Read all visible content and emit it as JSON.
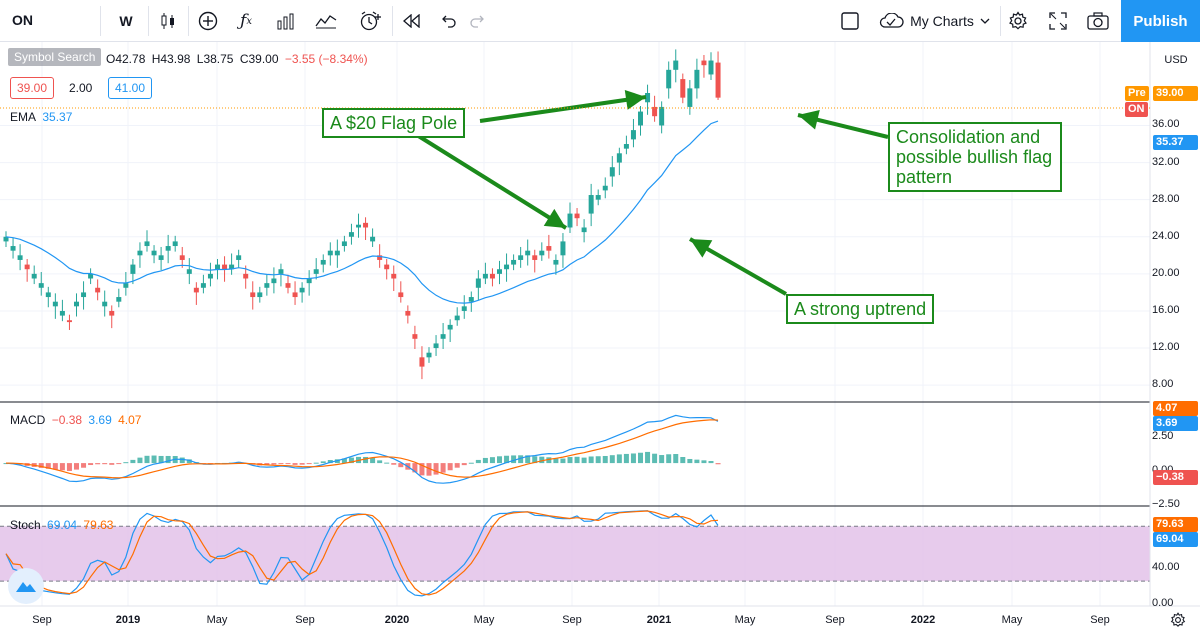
{
  "toolbar": {
    "symbol": "ON",
    "interval": "W",
    "my_charts": "My Charts",
    "publish": "Publish",
    "icons": [
      "candles-icon",
      "add-indicator-icon",
      "fx-icon",
      "bar-chart-icon",
      "compare-icon",
      "alert-icon",
      "replay-icon",
      "undo-icon",
      "redo-icon",
      "layout-icon",
      "cloud-icon",
      "settings-icon",
      "fullscreen-icon",
      "camera-icon"
    ]
  },
  "legend": {
    "symbol_search": "Symbol Search",
    "open": "O42.78",
    "high": "H43.98",
    "low": "L38.75",
    "close": "C39.00",
    "change": "−3.55 (−8.34%)",
    "bid": "39.00",
    "spread": "2.00",
    "ask": "41.00",
    "ema_label": "EMA",
    "ema_value": "35.37",
    "macd_label": "MACD",
    "macd_hist": "−0.38",
    "macd_line": "3.69",
    "macd_signal": "4.07",
    "stoch_label": "Stoch",
    "stoch_k": "69.04",
    "stoch_d": "79.63"
  },
  "price_axis": {
    "currency": "USD",
    "ticks": [
      "36.00",
      "32.00",
      "28.00",
      "24.00",
      "20.00",
      "16.00",
      "12.00",
      "8.00"
    ],
    "pre_label": "Pre",
    "last_price": "39.00",
    "symbol_tag": "ON",
    "ema_tag": "35.37"
  },
  "macd_axis": {
    "ticks": [
      "2.50",
      "0.00",
      "−2.50"
    ],
    "tag_signal": "4.07",
    "tag_macd": "3.69",
    "tag_hist": "−0.38"
  },
  "stoch_axis": {
    "ticks": [
      "40.00",
      "0.00"
    ],
    "tag_d": "79.63",
    "tag_k": "69.04"
  },
  "time_axis": [
    {
      "label": "Sep",
      "bold": false
    },
    {
      "label": "2019",
      "bold": true
    },
    {
      "label": "May",
      "bold": false
    },
    {
      "label": "Sep",
      "bold": false
    },
    {
      "label": "2020",
      "bold": true
    },
    {
      "label": "May",
      "bold": false
    },
    {
      "label": "Sep",
      "bold": false
    },
    {
      "label": "2021",
      "bold": true
    },
    {
      "label": "May",
      "bold": false
    },
    {
      "label": "Sep",
      "bold": false
    },
    {
      "label": "2022",
      "bold": true
    },
    {
      "label": "May",
      "bold": false
    },
    {
      "label": "Sep",
      "bold": false
    }
  ],
  "annotations": {
    "flag_pole": "A $20 Flag Pole",
    "consolidation": "Consolidation and possible bullish flag pattern",
    "uptrend": "A strong uptrend"
  },
  "colors": {
    "up": "#26a69a",
    "down": "#ef5350",
    "ema": "#2196f3",
    "macd_line": "#2196f3",
    "signal": "#ff6d00",
    "annotation": "#1b8a1b",
    "stoch_band": "#e1bee7",
    "publish": "#2196f3"
  },
  "chart_data": {
    "type": "candlestick",
    "timeframe": "weekly",
    "last_bar": {
      "open": 42.78,
      "high": 43.98,
      "low": 38.75,
      "close": 39.0
    },
    "price_path": [
      [
        23.5,
        24.0
      ],
      [
        22.5,
        23.0
      ],
      [
        21.5,
        22.0
      ],
      [
        21.0,
        20.5
      ],
      [
        19.5,
        20.0
      ],
      [
        18.5,
        19.0
      ],
      [
        17.5,
        18.0
      ],
      [
        16.5,
        17.0
      ],
      [
        15.5,
        16.0
      ],
      [
        15.0,
        14.8
      ],
      [
        16.5,
        17.0
      ],
      [
        17.5,
        18.0
      ],
      [
        19.5,
        20.0
      ],
      [
        18.5,
        18.0
      ],
      [
        16.5,
        17.0
      ],
      [
        16.0,
        15.5
      ],
      [
        17.0,
        17.5
      ],
      [
        18.5,
        19.0
      ],
      [
        20.0,
        21.0
      ],
      [
        22.0,
        22.5
      ],
      [
        23.0,
        23.5
      ],
      [
        22.0,
        22.5
      ],
      [
        21.5,
        22.0
      ],
      [
        22.5,
        23.0
      ],
      [
        23.0,
        23.5
      ],
      [
        22.0,
        21.5
      ],
      [
        20.0,
        20.5
      ],
      [
        18.5,
        18.0
      ],
      [
        18.5,
        19.0
      ],
      [
        19.5,
        20.0
      ],
      [
        20.5,
        21.0
      ],
      [
        21.0,
        20.5
      ],
      [
        20.5,
        21.0
      ],
      [
        21.5,
        22.0
      ],
      [
        20.0,
        19.5
      ],
      [
        18.0,
        17.5
      ],
      [
        17.5,
        18.0
      ],
      [
        18.5,
        19.0
      ],
      [
        19.0,
        19.5
      ],
      [
        20.0,
        20.5
      ],
      [
        19.0,
        18.5
      ],
      [
        18.0,
        17.5
      ],
      [
        18.0,
        18.5
      ],
      [
        19.0,
        19.5
      ],
      [
        20.0,
        20.5
      ],
      [
        21.0,
        21.5
      ],
      [
        22.0,
        22.5
      ],
      [
        22.0,
        22.5
      ],
      [
        23.0,
        23.5
      ],
      [
        24.0,
        24.5
      ],
      [
        25.0,
        25.3
      ],
      [
        25.5,
        25.0
      ],
      [
        23.5,
        24.0
      ],
      [
        22.0,
        21.5
      ],
      [
        21.0,
        20.5
      ],
      [
        20.0,
        19.5
      ],
      [
        18.0,
        17.5
      ],
      [
        16.0,
        15.5
      ],
      [
        13.5,
        13.0
      ],
      [
        11.0,
        10.0
      ],
      [
        11.0,
        11.5
      ],
      [
        12.0,
        12.5
      ],
      [
        13.0,
        13.5
      ],
      [
        14.0,
        14.5
      ],
      [
        15.0,
        15.5
      ],
      [
        16.0,
        16.5
      ],
      [
        17.0,
        17.5
      ],
      [
        18.5,
        19.5
      ],
      [
        19.5,
        20.0
      ],
      [
        20.0,
        19.5
      ],
      [
        20.0,
        20.5
      ],
      [
        20.5,
        21.0
      ],
      [
        21.0,
        21.5
      ],
      [
        21.5,
        22.0
      ],
      [
        22.0,
        22.5
      ],
      [
        22.0,
        21.5
      ],
      [
        22.0,
        22.5
      ],
      [
        23.0,
        22.5
      ],
      [
        21.0,
        21.5
      ],
      [
        22.0,
        23.5
      ],
      [
        25.0,
        26.5
      ],
      [
        26.5,
        26.0
      ],
      [
        24.5,
        25.0
      ],
      [
        26.5,
        28.5
      ],
      [
        28.0,
        28.5
      ],
      [
        29.0,
        29.5
      ],
      [
        30.5,
        31.5
      ],
      [
        32.0,
        33.0
      ],
      [
        33.5,
        34.0
      ],
      [
        34.5,
        35.5
      ],
      [
        36.0,
        37.5
      ],
      [
        38.5,
        39.5
      ],
      [
        38.0,
        37.0
      ],
      [
        36.0,
        38.0
      ],
      [
        40.0,
        42.0
      ],
      [
        42.0,
        43.0
      ],
      [
        41.0,
        39.0
      ],
      [
        38.0,
        40.0
      ],
      [
        40.0,
        42.0
      ],
      [
        43.0,
        42.5
      ],
      [
        41.5,
        43.0
      ],
      [
        42.78,
        39.0
      ]
    ],
    "price_range": [
      6.4,
      45.0
    ],
    "macd_range": [
      -4.5,
      6.5
    ],
    "stoch_range": [
      -5,
      100
    ],
    "stoch_band": [
      20,
      80
    ]
  }
}
